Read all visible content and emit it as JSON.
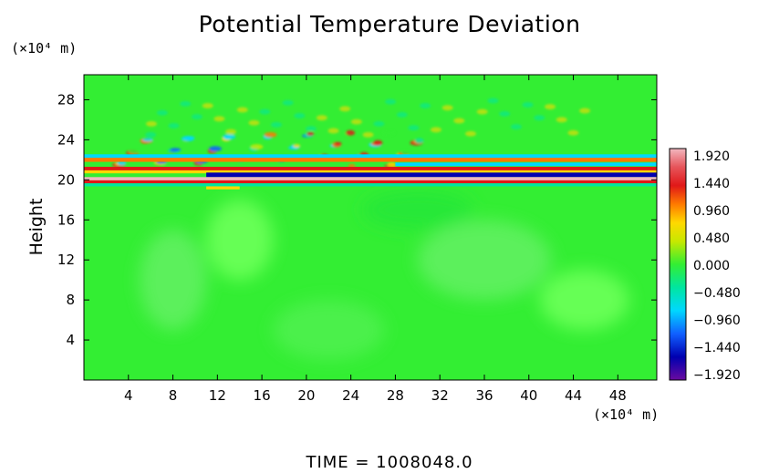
{
  "chart_data": {
    "type": "heatmap",
    "title": "Potential Temperature Deviation",
    "ylabel": "Height",
    "y_unit": "(×10⁴ m)",
    "x_unit": "(×10⁴ m)",
    "footer": "TIME  =  1008048.0",
    "x_ticks": [
      "4",
      "8",
      "12",
      "16",
      "20",
      "24",
      "28",
      "32",
      "36",
      "40",
      "44",
      "48"
    ],
    "y_ticks": [
      "4",
      "8",
      "12",
      "16",
      "20",
      "24",
      "28"
    ],
    "xlim": [
      0,
      51.5
    ],
    "ylim": [
      0,
      30.5
    ],
    "grid": false,
    "colorbar": {
      "labels": [
        "1.920",
        "1.440",
        "0.960",
        "0.480",
        "0.000",
        "−0.480",
        "−0.960",
        "−1.440",
        "−1.920"
      ],
      "range": [
        -1.92,
        1.92
      ]
    },
    "background_value": 0.1,
    "features": [
      {
        "desc": "strong positive band",
        "y": 20.1,
        "x_range": [
          0,
          51.5
        ],
        "value": 1.9
      },
      {
        "desc": "strong negative band",
        "y": 20.5,
        "x_range": [
          11,
          51.5
        ],
        "value": -1.9
      },
      {
        "desc": "positive band",
        "y": 21.1,
        "x_range": [
          0,
          51.5
        ],
        "value": 1.2
      },
      {
        "desc": "negative band",
        "y": 21.5,
        "x_range": [
          0,
          51.5
        ],
        "value": -1.0
      },
      {
        "desc": "wave disturbance",
        "y_range": [
          20,
          25
        ],
        "x_range": [
          5,
          32
        ],
        "value_range": [
          -1.2,
          1.2
        ]
      }
    ]
  }
}
